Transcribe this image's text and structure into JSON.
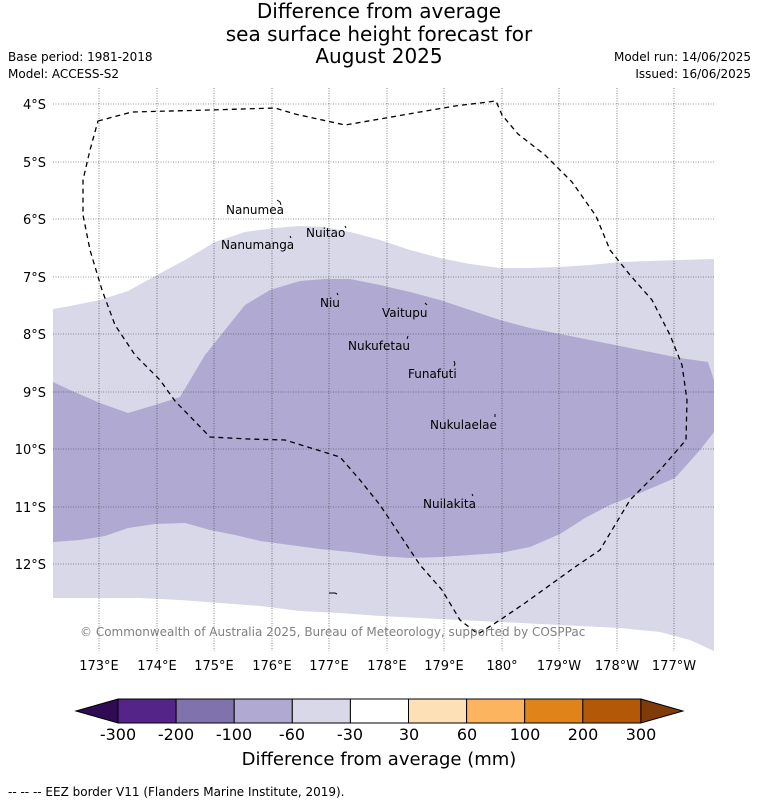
{
  "title": {
    "line1": "Difference from average",
    "line2": "sea surface height forecast for",
    "line3": "August 2025"
  },
  "meta": {
    "base_period": "Base period: 1981-2018",
    "model": "Model: ACCESS-S2",
    "model_run": "Model run: 14/06/2025",
    "issued": "Issued: 16/06/2025"
  },
  "map": {
    "lat_labels": [
      "4°S",
      "5°S",
      "6°S",
      "7°S",
      "8°S",
      "9°S",
      "10°S",
      "11°S",
      "12°S"
    ],
    "lon_labels": [
      "173°E",
      "174°E",
      "175°E",
      "176°E",
      "177°E",
      "178°E",
      "179°E",
      "180°",
      "179°W",
      "178°W",
      "177°W"
    ],
    "places": [
      {
        "name": "Nanumea"
      },
      {
        "name": "Nuitao"
      },
      {
        "name": "Nanumanga"
      },
      {
        "name": "Niu"
      },
      {
        "name": "Vaitupu"
      },
      {
        "name": "Nukufetau"
      },
      {
        "name": "Funafuti"
      },
      {
        "name": "Nukulaelae"
      },
      {
        "name": "Nuilakita"
      }
    ],
    "copyright": "© Commonwealth of Australia 2025, Bureau of Meteorology, supported by COSPPac",
    "fill_colors": {
      "ocean_neutral": "#ffffff",
      "band_-60_-30": "#d8d8e8",
      "band_-100_-60": "#b0aad2"
    }
  },
  "colorbar": {
    "ticks": [
      "-300",
      "-200",
      "-100",
      "-60",
      "-30",
      "30",
      "60",
      "100",
      "200",
      "300"
    ],
    "colors": [
      "#2e0b52",
      "#542488",
      "#7f72ad",
      "#b0aad2",
      "#d8d8e8",
      "#ffffff",
      "#fde0b5",
      "#fcb45e",
      "#e0841a",
      "#b35806",
      "#7f3b08"
    ],
    "title": "Difference from average (mm)"
  },
  "footer": "--  --  -- EEZ border V11 (Flanders Marine Institute, 2019)."
}
